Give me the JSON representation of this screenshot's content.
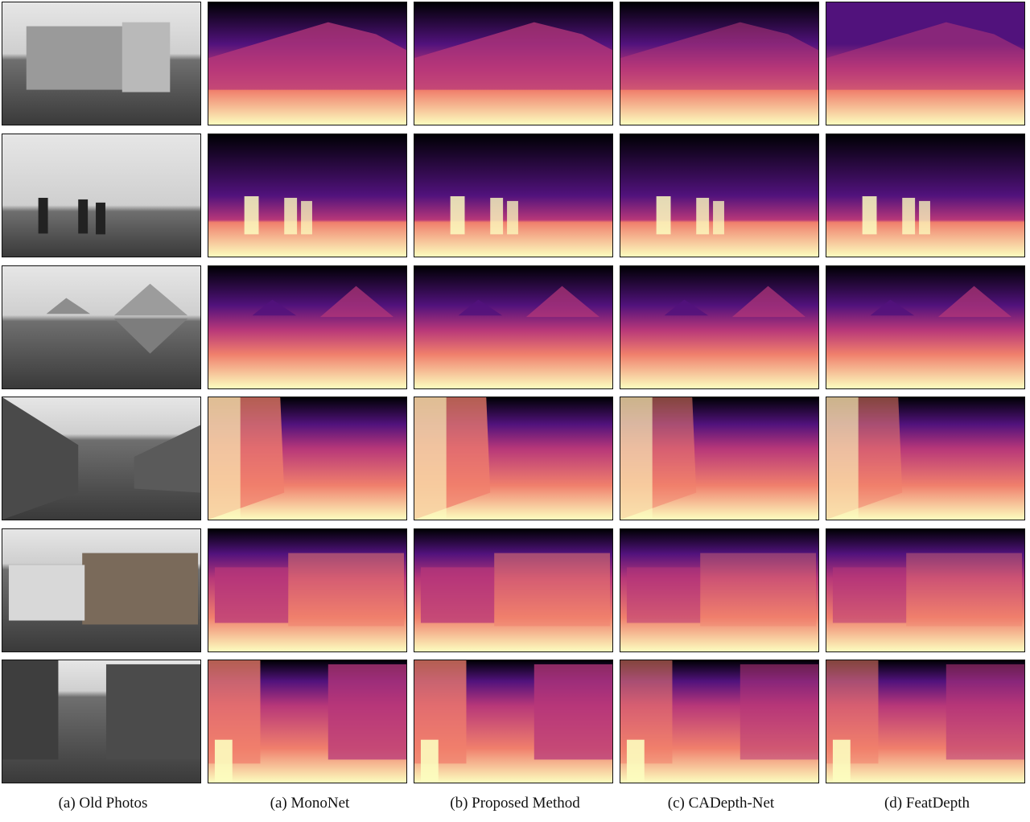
{
  "captions": [
    "(a) Old Photos",
    "(a) MonoNet",
    "(b) Proposed Method",
    "(c) CADepth-Net",
    "(d) FeatDepth"
  ],
  "columns": [
    "old-photos",
    "mononet",
    "proposed-method",
    "cadepth-net",
    "featdepth"
  ],
  "rows": [
    "building",
    "farmers-field",
    "pyramids",
    "village-street",
    "brick-warehouse",
    "market-street"
  ],
  "colors": {
    "near": "#fcfdbf",
    "mid": "#f07f6c",
    "midfar": "#b73779",
    "far": "#51127c",
    "sky": "#000004"
  }
}
